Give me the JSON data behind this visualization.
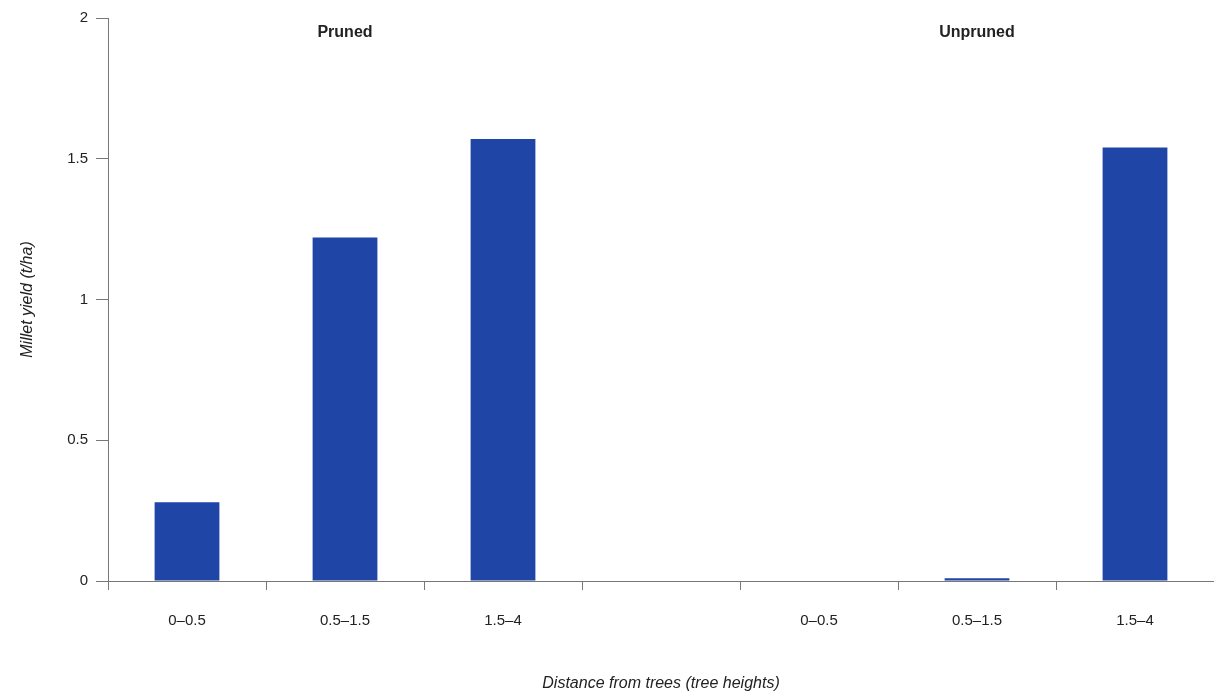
{
  "chart_data": {
    "type": "bar",
    "xlabel": "Distance from trees (tree heights)",
    "ylabel": "Millet yield (t/ha)",
    "annotations": [
      "Pruned",
      "Unpruned"
    ],
    "categories": [
      "0–0.5",
      "0.5–1.5",
      "1.5–4",
      null,
      "0–0.5",
      "0.5–1.5",
      "1.5–4"
    ],
    "values": [
      0.28,
      1.22,
      1.57,
      null,
      0,
      0.01,
      1.54
    ],
    "color": "#1f45a6",
    "ylim": [
      0,
      2
    ],
    "yticks": [
      0,
      0.5,
      1,
      1.5,
      2
    ],
    "grid": false,
    "legend": false
  }
}
